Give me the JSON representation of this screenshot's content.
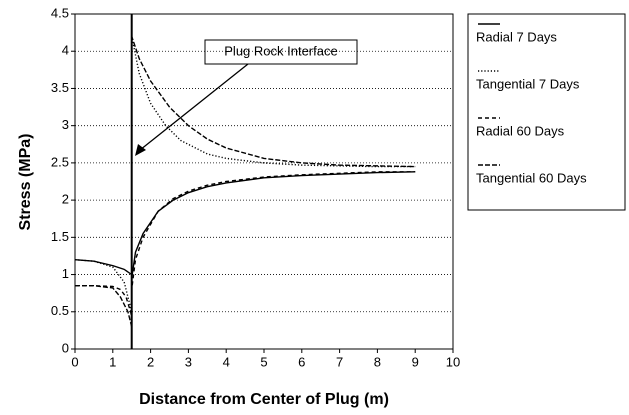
{
  "chart_data": {
    "type": "line",
    "xlabel": "Distance from Center of Plug (m)",
    "ylabel": "Stress (MPa)",
    "annotation": "Plug Rock Interface",
    "interface_x": 1.5,
    "xlim": [
      0,
      10
    ],
    "ylim": [
      0,
      4.5
    ],
    "xticks": [
      0,
      1,
      2,
      3,
      4,
      5,
      6,
      7,
      8,
      9,
      10
    ],
    "yticks": [
      0,
      0.5,
      1,
      1.5,
      2,
      2.5,
      3,
      3.5,
      4,
      4.5
    ],
    "grid": true,
    "series": [
      {
        "name": "Radial 7 Days",
        "color": "#000",
        "style": "solid",
        "x": [
          0,
          0.5,
          1,
          1.3,
          1.5,
          1.5,
          1.6,
          1.8,
          2.2,
          2.6,
          3,
          3.5,
          4,
          5,
          6,
          7,
          8,
          9
        ],
        "values": [
          1.2,
          1.18,
          1.12,
          1.07,
          1.0,
          0.95,
          1.3,
          1.55,
          1.85,
          2.0,
          2.1,
          2.18,
          2.23,
          2.3,
          2.33,
          2.35,
          2.37,
          2.38
        ]
      },
      {
        "name": "Tangential 7 Days",
        "color": "#000",
        "style": "dotted",
        "x": [
          0,
          0.5,
          1,
          1.3,
          1.45,
          1.5,
          1.5,
          1.7,
          2,
          2.4,
          2.8,
          3.5,
          4,
          5,
          6,
          7,
          8,
          9
        ],
        "values": [
          1.2,
          1.18,
          1.1,
          0.9,
          0.6,
          0.4,
          4.2,
          3.7,
          3.3,
          3.0,
          2.8,
          2.62,
          2.56,
          2.5,
          2.47,
          2.46,
          2.45,
          2.45
        ]
      },
      {
        "name": "Radial 60 Days",
        "color": "#000",
        "style": "dashed",
        "x": [
          0,
          0.5,
          1,
          1.2,
          1.35,
          1.5,
          1.5,
          1.6,
          1.8,
          2.2,
          2.6,
          3,
          3.5,
          4,
          5,
          6,
          7,
          8,
          9
        ],
        "values": [
          0.85,
          0.85,
          0.84,
          0.8,
          0.7,
          0.45,
          0.8,
          1.2,
          1.5,
          1.85,
          2.02,
          2.12,
          2.2,
          2.25,
          2.31,
          2.34,
          2.36,
          2.38,
          2.38
        ]
      },
      {
        "name": "Tangential 60 Days",
        "color": "#000",
        "style": "dashed-long",
        "x": [
          0,
          0.5,
          1,
          1.2,
          1.4,
          1.5,
          1.5,
          1.7,
          2,
          2.5,
          3,
          3.5,
          4,
          5,
          6,
          7,
          8,
          9
        ],
        "values": [
          0.85,
          0.85,
          0.82,
          0.7,
          0.5,
          0.3,
          4.2,
          3.9,
          3.6,
          3.25,
          3.0,
          2.82,
          2.7,
          2.56,
          2.5,
          2.47,
          2.46,
          2.45
        ]
      }
    ]
  }
}
